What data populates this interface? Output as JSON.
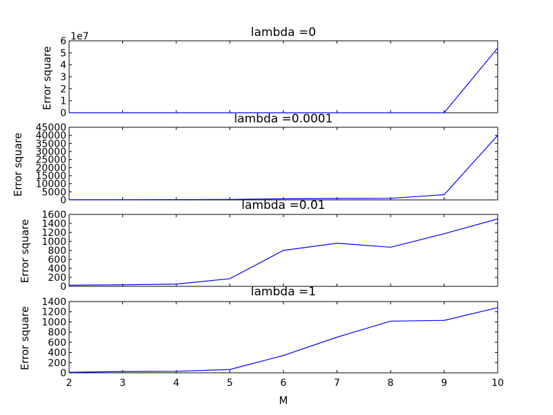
{
  "chart_data": [
    {
      "type": "line",
      "title": "lambda =0",
      "ylabel": "Error square",
      "xlabel": "",
      "offset_text": "1e7",
      "x": [
        2,
        3,
        4,
        5,
        6,
        7,
        8,
        9,
        10
      ],
      "series": [
        {
          "values": [
            0,
            0,
            0,
            0,
            0,
            0,
            0,
            0,
            54000000
          ]
        }
      ],
      "xlim": [
        2,
        10
      ],
      "ylim": [
        0,
        60000000
      ],
      "yticks": [
        0,
        10000000,
        20000000,
        30000000,
        40000000,
        50000000,
        60000000
      ],
      "yticklabels": [
        "0",
        "1",
        "2",
        "3",
        "4",
        "5",
        "6"
      ],
      "grid": false
    },
    {
      "type": "line",
      "title": "lambda =0.0001",
      "ylabel": "Error square",
      "xlabel": "",
      "x": [
        2,
        3,
        4,
        5,
        6,
        7,
        8,
        9,
        10
      ],
      "series": [
        {
          "values": [
            100,
            100,
            150,
            300,
            700,
            900,
            1000,
            3200,
            40000
          ]
        }
      ],
      "xlim": [
        2,
        10
      ],
      "ylim": [
        0,
        45000
      ],
      "yticks": [
        0,
        5000,
        10000,
        15000,
        20000,
        25000,
        30000,
        35000,
        40000,
        45000
      ],
      "yticklabels": [
        "0",
        "5000",
        "10000",
        "15000",
        "20000",
        "25000",
        "30000",
        "35000",
        "40000",
        "45000"
      ],
      "grid": false
    },
    {
      "type": "line",
      "title": "lambda =0.01",
      "ylabel": "Error square",
      "xlabel": "",
      "x": [
        2,
        3,
        4,
        5,
        6,
        7,
        8,
        9,
        10
      ],
      "series": [
        {
          "values": [
            25,
            35,
            50,
            170,
            800,
            960,
            870,
            1170,
            1500
          ]
        }
      ],
      "xlim": [
        2,
        10
      ],
      "ylim": [
        0,
        1600
      ],
      "yticks": [
        0,
        200,
        400,
        600,
        800,
        1000,
        1200,
        1400,
        1600
      ],
      "yticklabels": [
        "0",
        "200",
        "400",
        "600",
        "800",
        "1000",
        "1200",
        "1400",
        "1600"
      ],
      "grid": false
    },
    {
      "type": "line",
      "title": "lambda =1",
      "ylabel": "Error square",
      "xlabel": "M",
      "x": [
        2,
        3,
        4,
        5,
        6,
        7,
        8,
        9,
        10
      ],
      "series": [
        {
          "values": [
            10,
            25,
            30,
            65,
            340,
            700,
            1015,
            1030,
            1280
          ]
        }
      ],
      "xlim": [
        2,
        10
      ],
      "ylim": [
        0,
        1400
      ],
      "yticks": [
        0,
        200,
        400,
        600,
        800,
        1000,
        1200,
        1400
      ],
      "yticklabels": [
        "0",
        "200",
        "400",
        "600",
        "800",
        "1000",
        "1200",
        "1400"
      ],
      "xticks": [
        2,
        3,
        4,
        5,
        6,
        7,
        8,
        9,
        10
      ],
      "xticklabels": [
        "2",
        "3",
        "4",
        "5",
        "6",
        "7",
        "8",
        "9",
        "10"
      ],
      "grid": false
    }
  ],
  "colors": {
    "line": "#0000ff",
    "axes": "#000000",
    "background": "#ffffff"
  }
}
